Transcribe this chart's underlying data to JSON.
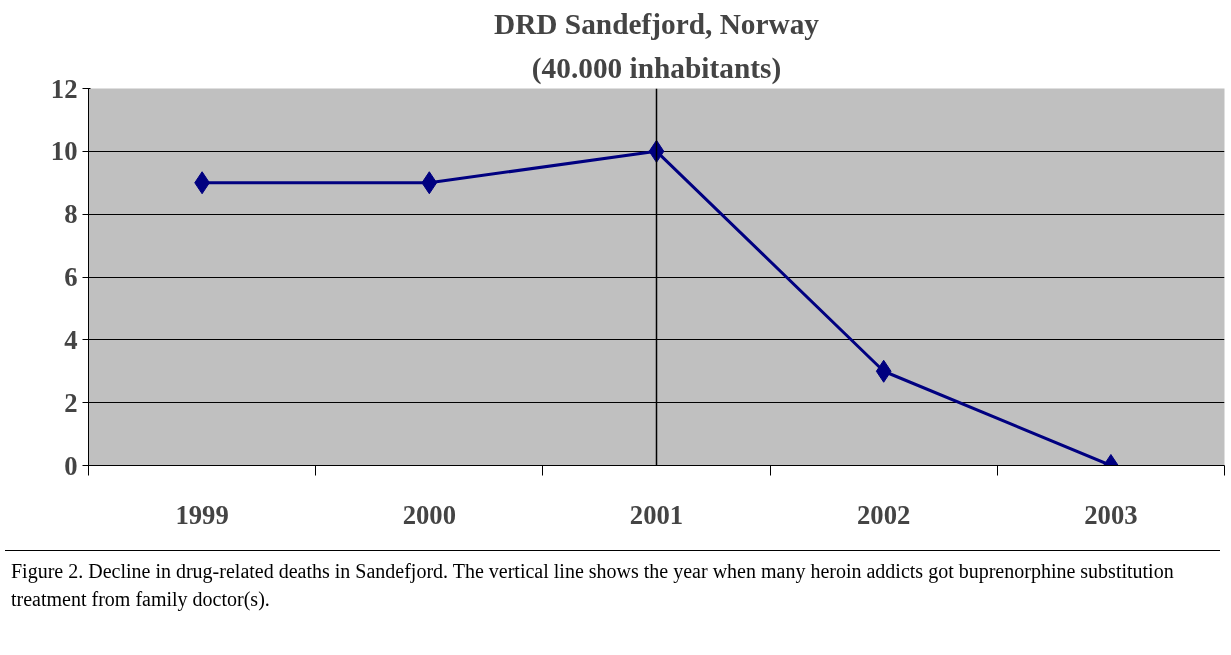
{
  "chart_data": {
    "type": "line",
    "title": "DRD Sandefjord, Norway",
    "subtitle": "(40.000 inhabitants)",
    "categories": [
      "1999",
      "2000",
      "2001",
      "2002",
      "2003"
    ],
    "series": [
      {
        "color": "#000080",
        "values": [
          9,
          9,
          10,
          3,
          0
        ]
      }
    ],
    "marker": "diamond",
    "ylim": [
      0,
      12
    ],
    "yticks": [
      0,
      2,
      4,
      6,
      8,
      10,
      12
    ],
    "grid": "y",
    "ref_lines": [
      {
        "axis": "x",
        "value": "2001",
        "color": "#000000"
      }
    ],
    "annotations": [
      "Figure 2. Decline in drug-related deaths in Sandefjord. The vertical line shows the year when many heroin addicts got buprenorphine substitution treatment from family doctor(s)."
    ]
  }
}
